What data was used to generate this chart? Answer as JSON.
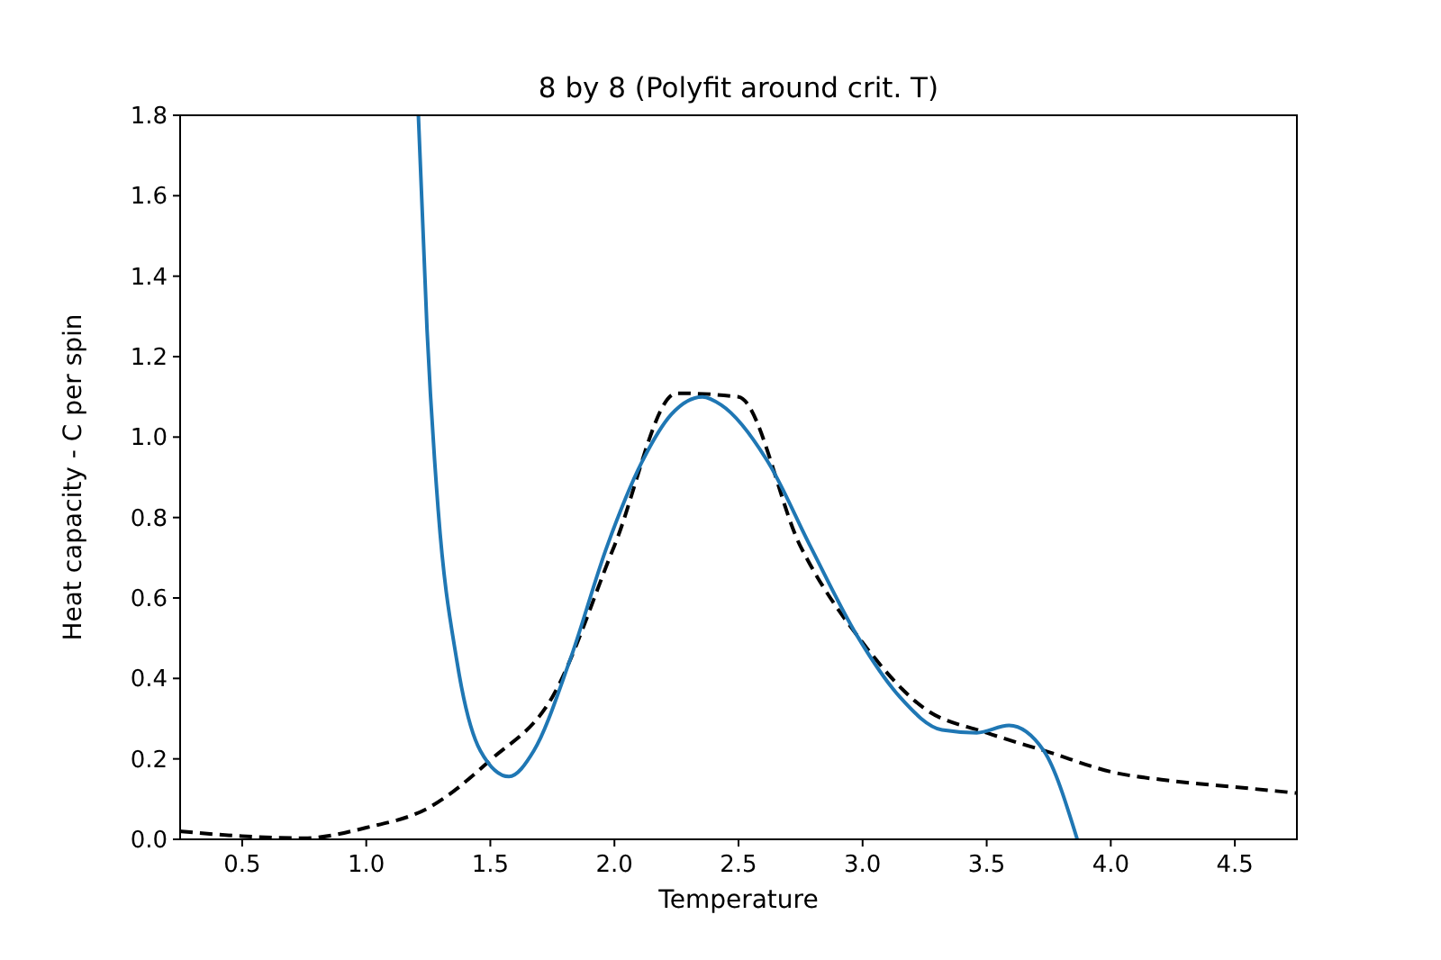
{
  "chart_data": {
    "type": "line",
    "title": "8 by 8 (Polyfit around crit. T)",
    "xlabel": "Temperature",
    "ylabel": "Heat capacity - C per spin",
    "xlim": [
      0.25,
      4.75
    ],
    "ylim": [
      0,
      1.8
    ],
    "xticks": [
      0.5,
      {
        "value": 1,
        "label": "1.0"
      },
      1.5,
      {
        "value": 2,
        "label": "2.0"
      },
      2.5,
      {
        "value": 3,
        "label": "3.0"
      },
      3.5,
      {
        "value": 4,
        "label": "4.0"
      },
      4.5
    ],
    "yticks": [
      {
        "value": 0,
        "label": "0.0"
      },
      0.2,
      0.4,
      0.6,
      0.8,
      {
        "value": 1,
        "label": "1.0"
      },
      1.2,
      1.4,
      1.6,
      1.8
    ],
    "grid": false,
    "series": [
      {
        "color": "#000000",
        "line_style": "dashed",
        "x": [
          0.25,
          0.5,
          0.75,
          1.0,
          1.25,
          1.5,
          1.75,
          2.0,
          2.25,
          2.5,
          2.75,
          3.0,
          3.25,
          3.5,
          3.75,
          4.0,
          4.25,
          4.5,
          4.75
        ],
        "values": [
          0.02,
          0.008,
          0.003,
          0.029,
          0.078,
          0.197,
          0.354,
          0.73,
          1.109,
          1.1,
          0.728,
          0.489,
          0.325,
          0.265,
          0.217,
          0.168,
          0.145,
          0.13,
          0.115
        ]
      },
      {
        "color": "#1f77b4",
        "line_style": "solid",
        "x": [
          1.21,
          1.245,
          1.29,
          1.365,
          1.46,
          1.575,
          1.675,
          1.82,
          1.97,
          2.11,
          2.23,
          2.355,
          2.43,
          2.62,
          2.79,
          2.98,
          3.15,
          3.32,
          3.46,
          3.59,
          3.73,
          3.865
        ],
        "values": [
          1.8,
          1.266,
          0.818,
          0.444,
          0.22,
          0.156,
          0.22,
          0.444,
          0.728,
          0.937,
          1.057,
          1.1,
          1.08,
          0.937,
          0.728,
          0.504,
          0.354,
          0.272,
          0.265,
          0.283,
          0.22,
          0
        ]
      }
    ]
  }
}
